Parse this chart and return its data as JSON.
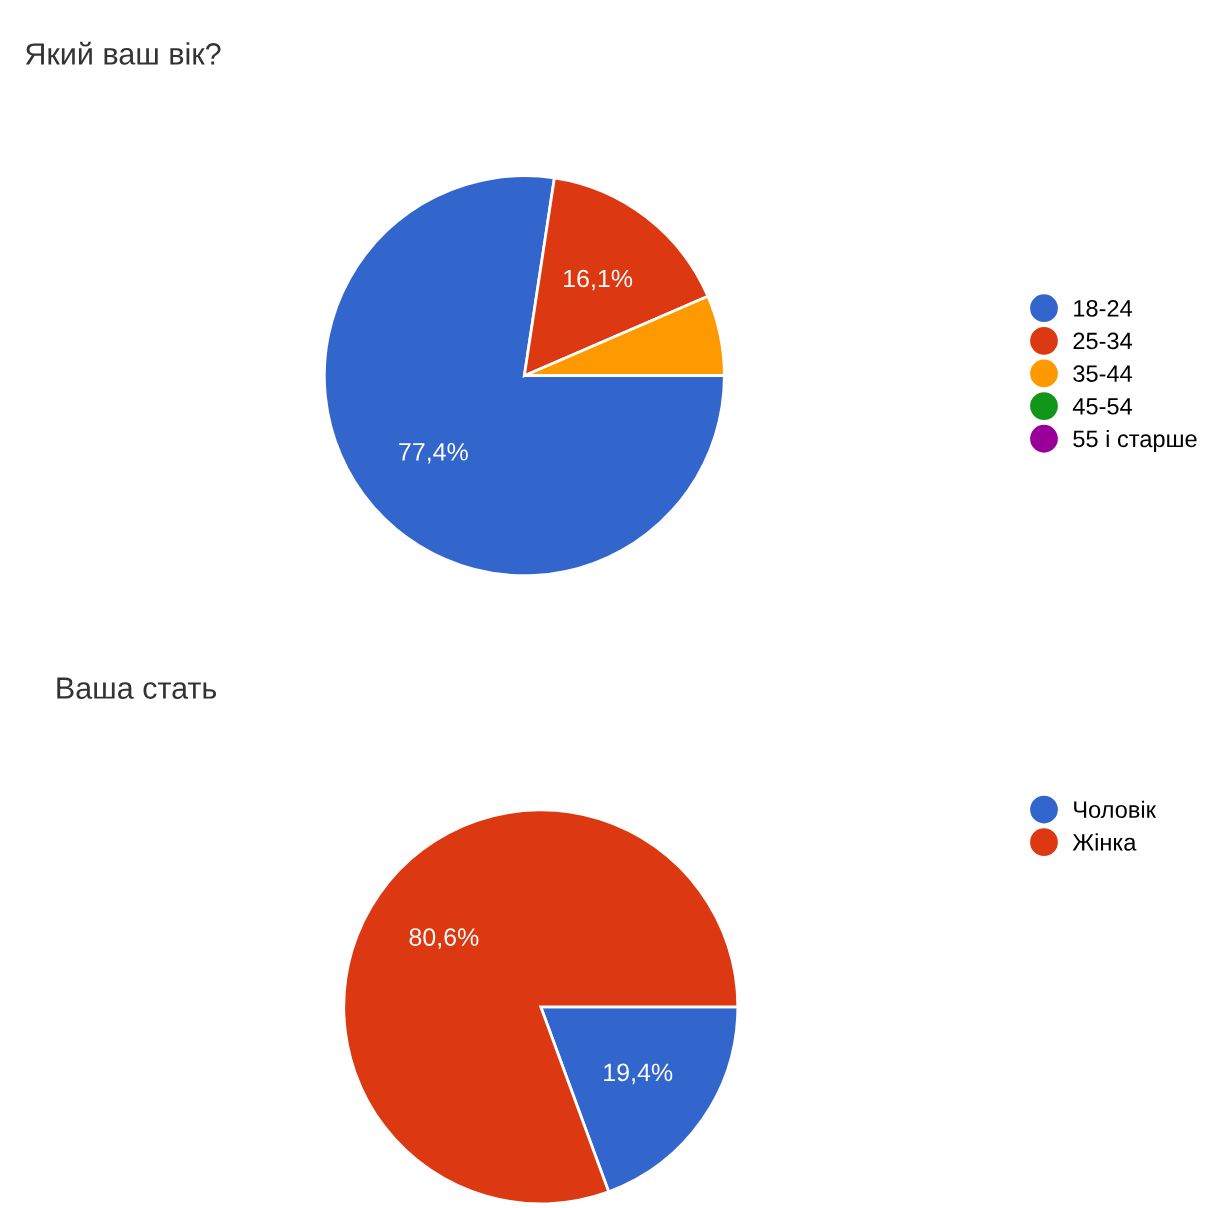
{
  "chart_data": [
    {
      "type": "pie",
      "title": "Який ваш вік?",
      "categories": [
        "18-24",
        "25-34",
        "35-44",
        "45-54",
        "55 і старше"
      ],
      "values": [
        77.4,
        16.1,
        6.5,
        0,
        0
      ],
      "colors": [
        "#3366cc",
        "#dc3912",
        "#ff9900",
        "#109618",
        "#990099"
      ],
      "value_labels": [
        "77,4%",
        "16,1%",
        null,
        null,
        null
      ],
      "legend": "right"
    },
    {
      "type": "pie",
      "title": "Ваша стать",
      "categories": [
        "Чоловік",
        "Жінка"
      ],
      "values": [
        19.4,
        80.6
      ],
      "colors": [
        "#3366cc",
        "#dc3912"
      ],
      "value_labels": [
        "19,4%",
        "80,6%"
      ],
      "legend": "right"
    }
  ]
}
